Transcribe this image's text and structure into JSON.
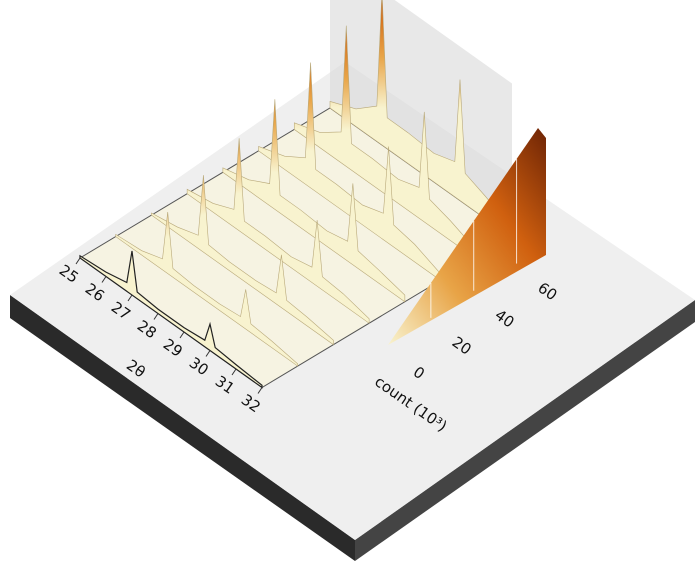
{
  "chart_data": {
    "type": "waterfall3d",
    "xlabel": "2θ",
    "xlim": [
      25,
      32
    ],
    "xticks": [
      25,
      26,
      27,
      28,
      29,
      30,
      31,
      32
    ],
    "x": [
      25,
      26,
      26.8,
      27,
      27.2,
      28,
      29,
      29.8,
      30,
      30.2,
      31,
      32
    ],
    "z": [
      [
        1,
        2,
        4,
        20,
        3,
        2,
        2,
        3,
        12,
        3,
        2,
        1
      ],
      [
        1,
        2,
        5,
        28,
        4,
        3,
        3,
        4,
        18,
        4,
        3,
        1
      ],
      [
        1,
        3,
        6,
        35,
        5,
        4,
        4,
        5,
        24,
        5,
        4,
        2
      ],
      [
        2,
        4,
        8,
        42,
        6,
        6,
        5,
        7,
        30,
        6,
        5,
        2
      ],
      [
        2,
        5,
        10,
        50,
        8,
        8,
        7,
        9,
        37,
        8,
        6,
        3
      ],
      [
        2,
        6,
        12,
        57,
        10,
        10,
        9,
        12,
        44,
        10,
        8,
        3
      ],
      [
        3,
        7,
        14,
        64,
        12,
        12,
        11,
        14,
        50,
        12,
        9,
        4
      ],
      [
        3,
        8,
        16,
        70,
        14,
        14,
        13,
        16,
        55,
        14,
        10,
        4
      ]
    ],
    "colorbar_label": "count (10³)",
    "clim": [
      0,
      70
    ],
    "cticks": [
      0,
      20,
      40,
      60
    ],
    "colors": [
      "#f8f3cf",
      "#e8a447",
      "#d0600f",
      "#6e2405"
    ]
  }
}
